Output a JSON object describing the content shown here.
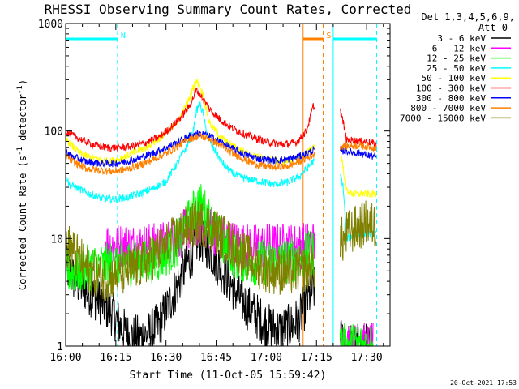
{
  "chart_data": {
    "type": "line",
    "title": "RHESSI Observing Summary Count Rates, Corrected",
    "xlabel": "Start Time (11-Oct-05 15:59:42)",
    "ylabel_main": "Corrected Count Rate (s",
    "ylabel_sup1": "-1",
    "ylabel_mid": " detector",
    "ylabel_sup2": "-1",
    "ylabel_end": ")",
    "y_scale": "log",
    "ylim": [
      1,
      1000
    ],
    "xlim_minutes": [
      0,
      97
    ],
    "x_ticks": [
      {
        "minute": 0,
        "label": "16:00"
      },
      {
        "minute": 15,
        "label": "16:15"
      },
      {
        "minute": 30,
        "label": "16:30"
      },
      {
        "minute": 45,
        "label": "16:45"
      },
      {
        "minute": 60,
        "label": "17:00"
      },
      {
        "minute": 75,
        "label": "17:15"
      },
      {
        "minute": 90,
        "label": "17:30"
      }
    ],
    "y_ticks": [
      {
        "value": 1,
        "label": "1"
      },
      {
        "value": 10,
        "label": "10"
      },
      {
        "value": 100,
        "label": "100"
      },
      {
        "value": 1000,
        "label": "1000"
      }
    ],
    "legend": {
      "header1": "Det 1,3,4,5,6,9,",
      "header2": "Att 0",
      "placement": "right"
    },
    "markers": [
      {
        "label": "N",
        "start": 0,
        "end": 15.5,
        "color": "#00ffff"
      },
      {
        "label": "S",
        "start": 71,
        "end": 77,
        "color": "#ff8000"
      },
      {
        "label": "",
        "start": 80,
        "end": 93,
        "color": "#00ffff"
      }
    ],
    "background_color": "#ffffff",
    "series": [
      {
        "name": "3 - 6 keV",
        "color": "#000000",
        "x": [
          0,
          3,
          9,
          13,
          16,
          19,
          22,
          25,
          28,
          31,
          34,
          37,
          39,
          40,
          41,
          43,
          46,
          49,
          52,
          55,
          58,
          61,
          64,
          67,
          70,
          72,
          74,
          83,
          86,
          89,
          92
        ],
        "y": [
          5.5,
          4.0,
          2.8,
          2.2,
          1.6,
          1.2,
          1.2,
          1.3,
          1.6,
          2.5,
          4.0,
          6.5,
          9.0,
          10,
          9.5,
          8.0,
          5.5,
          4.0,
          2.8,
          2.2,
          1.8,
          1.5,
          1.4,
          1.5,
          1.8,
          2.5,
          3.5,
          1.0,
          1.0,
          1.0,
          1.0
        ]
      },
      {
        "name": "6 - 12 keV",
        "color": "#ff00ff",
        "x": [
          12,
          14,
          18,
          22,
          26,
          30,
          34,
          37,
          40,
          43,
          46,
          50,
          54,
          58,
          62,
          66,
          70,
          74,
          83,
          86,
          89,
          92
        ],
        "y": [
          9.0,
          8.5,
          8.5,
          8.5,
          8.5,
          9.0,
          10.5,
          12.5,
          14,
          12.5,
          10.5,
          9.0,
          8.5,
          8.5,
          8.5,
          8.5,
          8.5,
          9.0,
          1.0,
          1.0,
          1.0,
          1.0
        ]
      },
      {
        "name": "12 - 25 keV",
        "color": "#00ff00",
        "x": [
          0,
          4,
          8,
          12,
          16,
          20,
          24,
          28,
          32,
          35,
          38,
          40,
          42,
          45,
          48,
          52,
          56,
          60,
          64,
          68,
          72,
          74,
          83,
          86,
          89,
          92
        ],
        "y": [
          5.0,
          5.0,
          5.5,
          5.5,
          6.0,
          6.0,
          6.0,
          6.5,
          8.0,
          11,
          17,
          21,
          17,
          11,
          8.0,
          6.5,
          6.0,
          6.0,
          6.0,
          6.5,
          7.0,
          7.5,
          1.0,
          1.0,
          1.0,
          1.0
        ]
      },
      {
        "name": "25 - 50 keV",
        "color": "#00ffff",
        "x": [
          0,
          1,
          3,
          6,
          10,
          14,
          18,
          22,
          26,
          30,
          33,
          36,
          38,
          39,
          40,
          41,
          42,
          44,
          47,
          50,
          54,
          58,
          62,
          66,
          70,
          73,
          74,
          82,
          83,
          84,
          87,
          90,
          93
        ],
        "y": [
          40,
          32,
          30,
          27,
          24,
          23,
          24,
          26,
          29,
          34,
          48,
          70,
          95,
          150,
          180,
          150,
          100,
          70,
          50,
          40,
          36,
          34,
          32,
          33,
          38,
          48,
          52,
          40,
          30,
          10,
          11,
          11,
          11
        ]
      },
      {
        "name": "50 - 100 keV",
        "color": "#ffff00",
        "x": [
          0,
          2,
          5,
          9,
          13,
          16,
          20,
          24,
          28,
          31,
          34,
          37,
          38,
          39,
          40,
          41,
          42,
          43,
          46,
          49,
          53,
          57,
          61,
          65,
          69,
          73,
          74,
          82,
          83,
          84,
          86,
          88,
          90,
          93
        ],
        "y": [
          85,
          72,
          60,
          55,
          52,
          55,
          62,
          70,
          85,
          100,
          130,
          200,
          250,
          290,
          270,
          220,
          160,
          120,
          90,
          75,
          65,
          58,
          54,
          52,
          55,
          65,
          72,
          72,
          45,
          28,
          26,
          26,
          26,
          26
        ]
      },
      {
        "name": "100 - 300 keV",
        "color": "#ff0000",
        "x": [
          0,
          1,
          4,
          8,
          12,
          16,
          20,
          24,
          28,
          31,
          34,
          37,
          38,
          39,
          40,
          41,
          43,
          46,
          49,
          53,
          57,
          61,
          65,
          69,
          72,
          73,
          74,
          82,
          83,
          84,
          86,
          88,
          90,
          93
        ],
        "y": [
          100,
          95,
          85,
          75,
          70,
          70,
          72,
          78,
          88,
          105,
          130,
          170,
          200,
          240,
          225,
          200,
          160,
          130,
          110,
          95,
          85,
          78,
          75,
          78,
          100,
          130,
          170,
          160,
          120,
          82,
          82,
          80,
          80,
          75
        ]
      },
      {
        "name": "300 - 800 keV",
        "color": "#0000ff",
        "x": [
          0,
          2,
          6,
          10,
          14,
          18,
          22,
          26,
          30,
          34,
          37,
          40,
          43,
          46,
          50,
          54,
          58,
          62,
          66,
          70,
          74,
          82,
          84,
          86,
          88,
          90,
          93
        ],
        "y": [
          65,
          58,
          52,
          50,
          50,
          52,
          56,
          62,
          70,
          80,
          90,
          95,
          90,
          80,
          68,
          60,
          55,
          53,
          54,
          58,
          66,
          66,
          65,
          63,
          62,
          60,
          57
        ]
      },
      {
        "name": "800 - 7000 keV",
        "color": "#ff8000",
        "x": [
          0,
          2,
          6,
          10,
          14,
          18,
          22,
          26,
          30,
          34,
          37,
          40,
          43,
          46,
          50,
          54,
          58,
          62,
          66,
          70,
          74,
          82,
          84,
          86,
          88,
          90,
          93
        ],
        "y": [
          60,
          52,
          45,
          43,
          42,
          44,
          48,
          54,
          62,
          74,
          85,
          90,
          85,
          74,
          62,
          53,
          48,
          46,
          47,
          52,
          60,
          72,
          72,
          73,
          73,
          72,
          70
        ]
      },
      {
        "name": "7000 - 15000 keV",
        "color": "#808000",
        "x": [
          0,
          3,
          7,
          11,
          15,
          19,
          23,
          27,
          31,
          34,
          37,
          40,
          43,
          46,
          50,
          54,
          58,
          62,
          66,
          70,
          74,
          82,
          83,
          84,
          86,
          88,
          90,
          93
        ],
        "y": [
          9.0,
          7.0,
          5.0,
          4.2,
          4.5,
          5.0,
          5.8,
          7.2,
          9.0,
          11,
          13,
          14,
          13,
          11,
          8.5,
          6.8,
          5.5,
          5.0,
          4.8,
          5.0,
          5.5,
          10,
          9.5,
          11,
          12,
          13,
          14,
          13
        ]
      }
    ]
  },
  "footer": {
    "timestamp": "20-Oct-2021 17:53"
  }
}
